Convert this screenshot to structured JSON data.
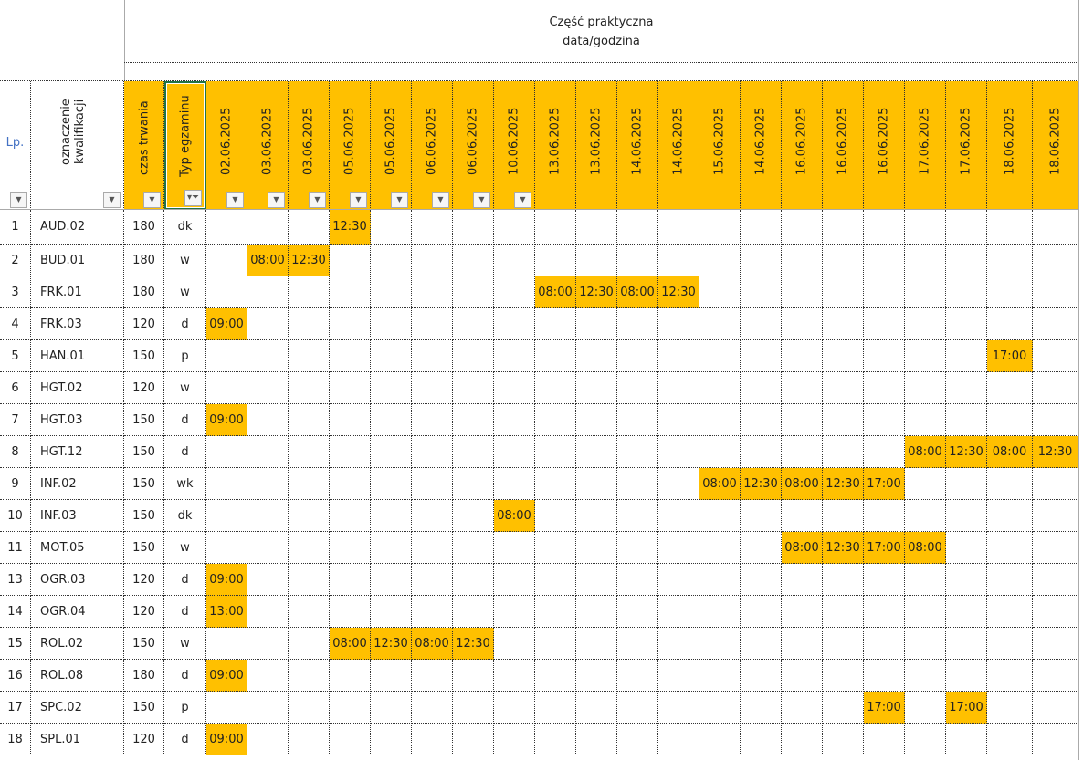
{
  "header": {
    "section_title": "Część praktyczna",
    "section_subtitle": "data/godzina",
    "lp": "Lp.",
    "qualification": "oznaczenie kwalifikacji",
    "duration": "czas trwania",
    "exam_type": "Typ egzaminu",
    "dates": [
      "02.06.2025",
      "03.06.2025",
      "03.06.2025",
      "05.06.2025",
      "05.06.2025",
      "06.06.2025",
      "06.06.2025",
      "10.06.2025",
      "13.06.2025",
      "13.06.2025",
      "14.06.2025",
      "14.06.2025",
      "15.06.2025",
      "14.06.2025",
      "16.06.2025",
      "16.06.2025",
      "16.06.2025",
      "17.06.2025",
      "17.06.2025",
      "18.06.2025",
      "18.06.2025"
    ],
    "filtered_column": "Typ egzaminu"
  },
  "colors": {
    "highlight": "#ffc000",
    "lp_text": "#4472c4",
    "selection": "#217346"
  },
  "rows": [
    {
      "lp": "1",
      "code": "AUD.02",
      "duration": "180",
      "type": "dk",
      "slots": {
        "3": "12:30"
      }
    },
    {
      "lp": "2",
      "code": "BUD.01",
      "duration": "180",
      "type": "w",
      "slots": {
        "1": "08:00",
        "2": "12:30"
      }
    },
    {
      "lp": "3",
      "code": "FRK.01",
      "duration": "180",
      "type": "w",
      "slots": {
        "8": "08:00",
        "9": "12:30",
        "10": "08:00",
        "11": "12:30"
      }
    },
    {
      "lp": "4",
      "code": "FRK.03",
      "duration": "120",
      "type": "d",
      "slots": {
        "0": "09:00"
      }
    },
    {
      "lp": "5",
      "code": "HAN.01",
      "duration": "150",
      "type": "p",
      "slots": {
        "19": "17:00"
      }
    },
    {
      "lp": "6",
      "code": "HGT.02",
      "duration": "120",
      "type": "w",
      "slots": {}
    },
    {
      "lp": "7",
      "code": "HGT.03",
      "duration": "150",
      "type": "d",
      "slots": {
        "0": "09:00"
      }
    },
    {
      "lp": "8",
      "code": "HGT.12",
      "duration": "150",
      "type": "d",
      "slots": {
        "17": "08:00",
        "18": "12:30",
        "19": "08:00",
        "20": "12:30"
      }
    },
    {
      "lp": "9",
      "code": "INF.02",
      "duration": "150",
      "type": "wk",
      "slots": {
        "12": "08:00",
        "13": "12:30",
        "14": "08:00",
        "15": "12:30",
        "16": "17:00"
      }
    },
    {
      "lp": "10",
      "code": "INF.03",
      "duration": "150",
      "type": "dk",
      "slots": {
        "7": "08:00"
      }
    },
    {
      "lp": "11",
      "code": "MOT.05",
      "duration": "150",
      "type": "w",
      "slots": {
        "14": "08:00",
        "15": "12:30",
        "16": "17:00",
        "17": "08:00"
      }
    },
    {
      "lp": "13",
      "code": "OGR.03",
      "duration": "120",
      "type": "d",
      "slots": {
        "0": "09:00"
      }
    },
    {
      "lp": "14",
      "code": "OGR.04",
      "duration": "120",
      "type": "d",
      "slots": {
        "0": "13:00"
      }
    },
    {
      "lp": "15",
      "code": "ROL.02",
      "duration": "150",
      "type": "w",
      "slots": {
        "3": "08:00",
        "4": "12:30",
        "5": "08:00",
        "6": "12:30"
      }
    },
    {
      "lp": "16",
      "code": "ROL.08",
      "duration": "180",
      "type": "d",
      "slots": {
        "0": "09:00"
      }
    },
    {
      "lp": "17",
      "code": "SPC.02",
      "duration": "150",
      "type": "p",
      "slots": {
        "16": "17:00",
        "18": "17:00"
      }
    },
    {
      "lp": "18",
      "code": "SPL.01",
      "duration": "120",
      "type": "d",
      "slots": {
        "0": "09:00"
      }
    }
  ]
}
